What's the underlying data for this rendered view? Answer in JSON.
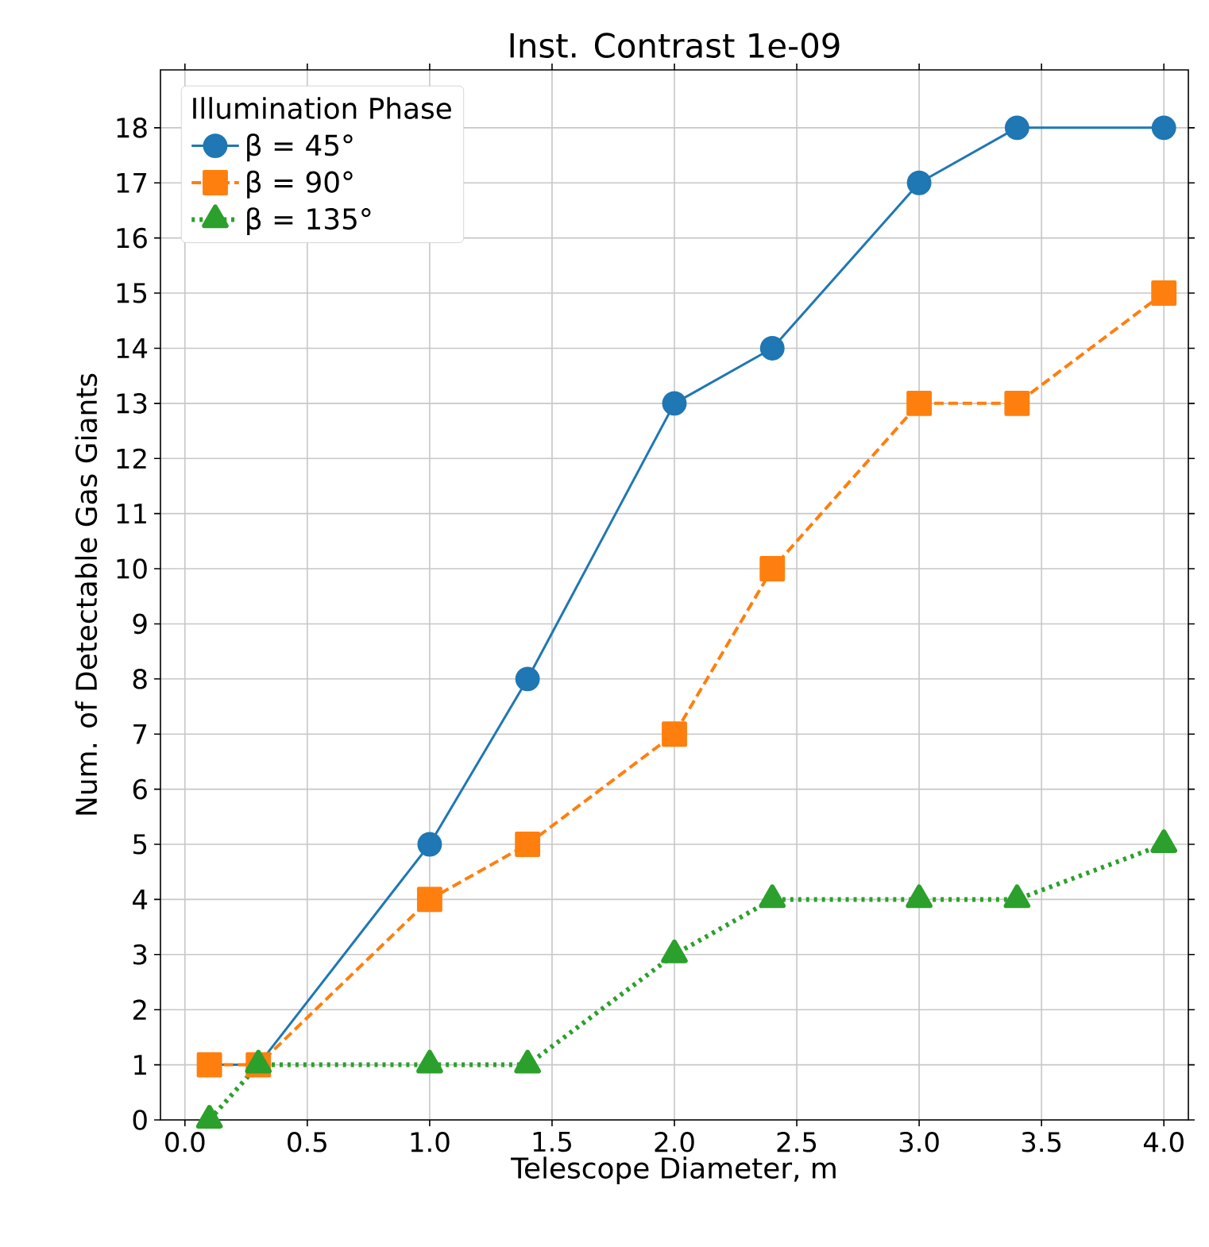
{
  "chart_data": {
    "type": "line",
    "title": "Inst. Contrast 1e-09",
    "xlabel": "Telescope Diameter, m",
    "ylabel": "Num. of Detectable Gas Giants",
    "legend_title": "Illumination Phase",
    "x": [
      0.1,
      0.3,
      1.0,
      1.4,
      2.0,
      2.4,
      3.0,
      3.4,
      4.0
    ],
    "series": [
      {
        "name": "β = 45°",
        "color": "#1f77b4",
        "marker": "circle",
        "line_style": "solid",
        "values": [
          1,
          1,
          5,
          8,
          13,
          14,
          17,
          18,
          18
        ]
      },
      {
        "name": "β = 90°",
        "color": "#ff7f0e",
        "marker": "square",
        "line_style": "dashed",
        "values": [
          1,
          1,
          4,
          5,
          7,
          10,
          13,
          13,
          15
        ]
      },
      {
        "name": "β = 135°",
        "color": "#2ca02c",
        "marker": "triangle",
        "line_style": "dotted",
        "values": [
          0,
          1,
          1,
          1,
          3,
          4,
          4,
          4,
          5
        ]
      }
    ],
    "xlim": [
      -0.1,
      4.1
    ],
    "ylim": [
      0,
      19.05
    ],
    "xticks": [
      {
        "value": 0,
        "label": "0.0"
      },
      0.5,
      {
        "value": 1,
        "label": "1.0"
      },
      1.5,
      {
        "value": 2,
        "label": "2.0"
      },
      2.5,
      {
        "value": 3,
        "label": "3.0"
      },
      3.5,
      {
        "value": 4,
        "label": "4.0"
      }
    ],
    "yticks": [
      0,
      1,
      2,
      3,
      4,
      5,
      6,
      7,
      8,
      9,
      10,
      11,
      12,
      13,
      14,
      15,
      16,
      17,
      18
    ],
    "grid": true,
    "legend": "top left"
  }
}
